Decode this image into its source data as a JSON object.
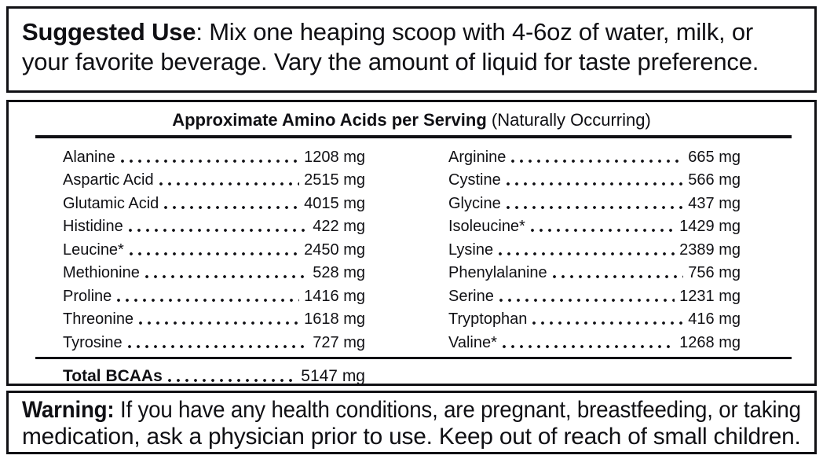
{
  "suggested_use": {
    "label": "Suggested Use",
    "separator": ": ",
    "lines": [
      "Mix one heaping scoop with 4-6oz of water, milk, or",
      "your favorite beverage. Vary the amount of liquid for taste preference."
    ]
  },
  "amino_table": {
    "title_bold": "Approximate Amino Acids per Serving",
    "title_note": " (Naturally Occurring)",
    "left_column": [
      {
        "name": "Alanine",
        "value": "1208 mg"
      },
      {
        "name": "Aspartic Acid",
        "value": "2515 mg"
      },
      {
        "name": "Glutamic Acid",
        "value": "4015 mg"
      },
      {
        "name": "Histidine",
        "value": "422 mg"
      },
      {
        "name": "Leucine*",
        "value": "2450 mg"
      },
      {
        "name": "Methionine",
        "value": "528 mg"
      },
      {
        "name": "Proline",
        "value": "1416 mg"
      },
      {
        "name": "Threonine",
        "value": "1618 mg"
      },
      {
        "name": "Tyrosine",
        "value": "727 mg"
      }
    ],
    "right_column": [
      {
        "name": "Arginine",
        "value": "665 mg"
      },
      {
        "name": "Cystine",
        "value": "566 mg"
      },
      {
        "name": "Glycine",
        "value": "437 mg"
      },
      {
        "name": "Isoleucine*",
        "value": "1429 mg"
      },
      {
        "name": "Lysine",
        "value": "2389 mg"
      },
      {
        "name": "Phenylalanine",
        "value": "756 mg"
      },
      {
        "name": "Serine",
        "value": "1231 mg"
      },
      {
        "name": "Tryptophan",
        "value": "416 mg"
      },
      {
        "name": "Valine*",
        "value": "1268 mg"
      }
    ],
    "total": {
      "name": "Total BCAAs",
      "value": "5147 mg"
    }
  },
  "warning": {
    "label": "Warning:",
    "separator": " ",
    "lines": [
      "If you have any health conditions, are pregnant, breastfeeding, or taking",
      "medication, ask a physician prior to use. Keep out of reach of small children."
    ]
  }
}
